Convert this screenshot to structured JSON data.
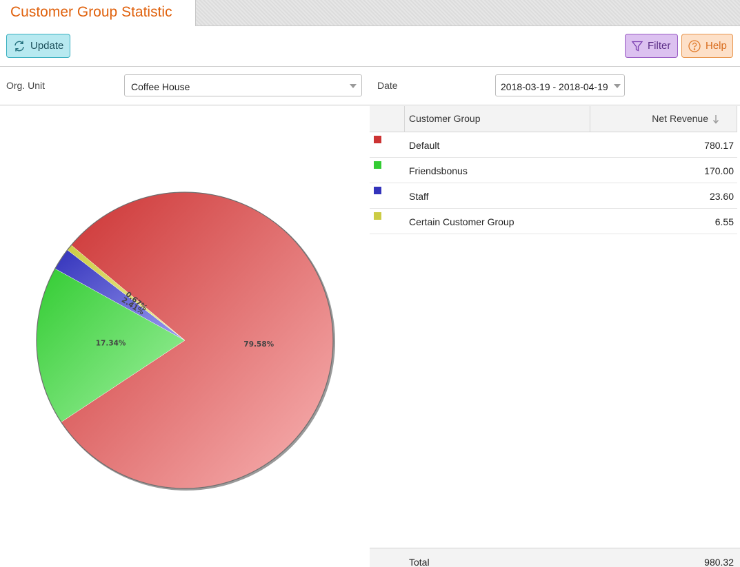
{
  "header": {
    "title": "Customer Group Statistic"
  },
  "toolbar": {
    "update_label": "Update",
    "filter_label": "Filter",
    "help_label": "Help"
  },
  "filters": {
    "org_unit_label": "Org. Unit",
    "org_unit_value": "Coffee House",
    "date_label": "Date",
    "date_value": "2018-03-19 - 2018-04-19"
  },
  "table": {
    "col_group": "Customer Group",
    "col_revenue": "Net Revenue",
    "rows": [
      {
        "group": "Default",
        "revenue": "780.17",
        "color": "#cc3333"
      },
      {
        "group": "Friendsbonus",
        "revenue": "170.00",
        "color": "#33cc33"
      },
      {
        "group": "Staff",
        "revenue": "23.60",
        "color": "#3333bb"
      },
      {
        "group": "Certain Customer Group",
        "revenue": "6.55",
        "color": "#cccc44"
      }
    ],
    "total_label": "Total",
    "total_value": "980.32"
  },
  "chart_data": {
    "type": "pie",
    "categories": [
      "Default",
      "Friendsbonus",
      "Staff",
      "Certain Customer Group"
    ],
    "values": [
      780.17,
      170.0,
      23.6,
      6.55
    ],
    "labels": [
      "79.58%",
      "17.34%",
      "2.41%",
      "0.67%"
    ],
    "colors": [
      "#cc3333",
      "#33cc33",
      "#3333bb",
      "#cccc44"
    ]
  }
}
